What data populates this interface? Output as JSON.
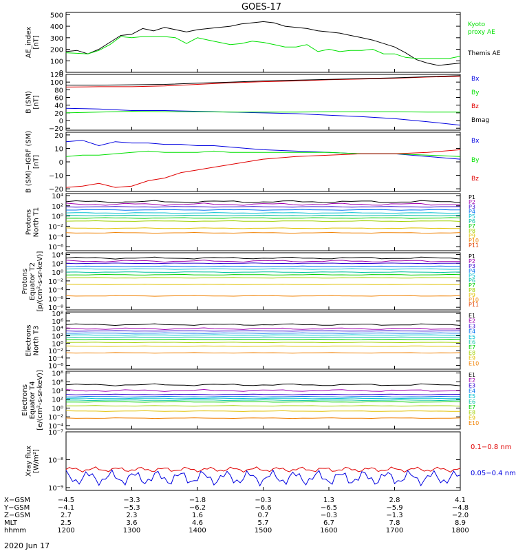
{
  "title": "GOES-17",
  "date": "2020 Jun 17",
  "colors": {
    "black": "#000000",
    "red": "#e00000",
    "green": "#00e000",
    "blue": "#0000e0",
    "P": [
      "#000000",
      "#a000b0",
      "#3000d0",
      "#0070f0",
      "#00c0d0",
      "#00c0a0",
      "#00d000",
      "#a0d000",
      "#e0c000",
      "#f08000",
      "#e04000",
      "#d00000"
    ]
  },
  "chart_data": [
    {
      "type": "line",
      "ylabel": "AE_index\n[nT]",
      "yticks": [
        "500",
        "400",
        "300",
        "200",
        "100",
        "0"
      ],
      "ylim": [
        0,
        520
      ],
      "legend": [
        {
          "label": "Kyoto\nproxy AE",
          "color": "#00e000"
        },
        {
          "label": "Themis AE",
          "color": "#000000"
        }
      ],
      "series": [
        {
          "name": "Themis AE",
          "color": "#000000",
          "x": [
            1200,
            1210,
            1220,
            1230,
            1240,
            1250,
            1300,
            1310,
            1320,
            1330,
            1340,
            1350,
            1400,
            1410,
            1420,
            1430,
            1440,
            1450,
            1500,
            1510,
            1520,
            1530,
            1540,
            1550,
            1600,
            1610,
            1620,
            1630,
            1640,
            1650,
            1700,
            1710,
            1720,
            1730,
            1740,
            1750,
            1800
          ],
          "y": [
            180,
            190,
            160,
            200,
            260,
            320,
            330,
            380,
            360,
            390,
            370,
            350,
            370,
            380,
            390,
            400,
            420,
            430,
            440,
            430,
            400,
            390,
            380,
            360,
            350,
            340,
            320,
            300,
            280,
            250,
            220,
            170,
            110,
            80,
            60,
            70,
            80
          ]
        },
        {
          "name": "Kyoto proxy AE",
          "color": "#00e000",
          "x": [
            1200,
            1210,
            1220,
            1230,
            1240,
            1250,
            1300,
            1310,
            1320,
            1330,
            1340,
            1350,
            1400,
            1410,
            1420,
            1430,
            1440,
            1450,
            1500,
            1510,
            1520,
            1530,
            1540,
            1550,
            1600,
            1610,
            1620,
            1630,
            1640,
            1650,
            1700,
            1710,
            1720,
            1730,
            1740,
            1750,
            1800
          ],
          "y": [
            170,
            165,
            160,
            190,
            240,
            310,
            300,
            310,
            310,
            310,
            300,
            250,
            300,
            280,
            260,
            240,
            250,
            270,
            260,
            240,
            220,
            220,
            240,
            180,
            200,
            180,
            190,
            190,
            200,
            160,
            160,
            130,
            120,
            120,
            120,
            120,
            140
          ]
        }
      ]
    },
    {
      "type": "line",
      "ylabel": "B (SM)\n[nT]",
      "yticks": [
        "120",
        "100",
        "80",
        "60",
        "40",
        "20",
        "0",
        "−20"
      ],
      "ylim": [
        -25,
        120
      ],
      "legend": [
        {
          "label": "Bx",
          "color": "#0000e0"
        },
        {
          "label": "By",
          "color": "#00e000"
        },
        {
          "label": "Bz",
          "color": "#e00000"
        },
        {
          "label": "Bmag",
          "color": "#000000"
        }
      ],
      "series": [
        {
          "name": "Bx",
          "color": "#0000e0",
          "x": [
            1200,
            1230,
            1300,
            1330,
            1400,
            1430,
            1500,
            1530,
            1600,
            1630,
            1700,
            1730,
            1800
          ],
          "y": [
            32,
            30,
            26,
            26,
            24,
            22,
            20,
            18,
            14,
            10,
            5,
            -3,
            -12
          ]
        },
        {
          "name": "By",
          "color": "#00e000",
          "x": [
            1200,
            1230,
            1300,
            1330,
            1400,
            1430,
            1500,
            1530,
            1600,
            1630,
            1700,
            1730,
            1800
          ],
          "y": [
            20,
            22,
            24,
            23,
            23,
            22,
            22,
            22,
            23,
            23,
            23,
            22,
            22
          ]
        },
        {
          "name": "Bz",
          "color": "#e00000",
          "x": [
            1200,
            1230,
            1300,
            1330,
            1400,
            1430,
            1500,
            1530,
            1600,
            1630,
            1700,
            1730,
            1800
          ],
          "y": [
            87,
            88,
            88,
            90,
            94,
            98,
            101,
            103,
            106,
            108,
            110,
            113,
            115
          ]
        },
        {
          "name": "Bmag",
          "color": "#000000",
          "x": [
            1200,
            1230,
            1300,
            1330,
            1400,
            1430,
            1500,
            1530,
            1600,
            1630,
            1700,
            1730,
            1800
          ],
          "y": [
            92,
            92,
            93,
            94,
            97,
            100,
            103,
            105,
            107,
            109,
            111,
            114,
            117
          ]
        }
      ]
    },
    {
      "type": "line",
      "ylabel": "B (SM)−IGRF (SM)\n[nT]",
      "yticks": [
        "20",
        "10",
        "0",
        "−10",
        "−20"
      ],
      "ylim": [
        -22,
        22
      ],
      "legend": [
        {
          "label": "Bx",
          "color": "#0000e0"
        },
        {
          "label": "By",
          "color": "#00e000"
        },
        {
          "label": "Bz",
          "color": "#e00000"
        }
      ],
      "series": [
        {
          "name": "Bx",
          "color": "#0000e0",
          "x": [
            1200,
            1215,
            1230,
            1245,
            1300,
            1315,
            1330,
            1345,
            1400,
            1415,
            1430,
            1445,
            1500,
            1530,
            1600,
            1630,
            1700,
            1730,
            1800
          ],
          "y": [
            15,
            16,
            12,
            15,
            14,
            14,
            13,
            13,
            12,
            12,
            11,
            10,
            9,
            8,
            7,
            6,
            6,
            4,
            2
          ]
        },
        {
          "name": "By",
          "color": "#00e000",
          "x": [
            1200,
            1215,
            1230,
            1245,
            1300,
            1315,
            1330,
            1345,
            1400,
            1415,
            1430,
            1445,
            1500,
            1530,
            1600,
            1630,
            1700,
            1730,
            1800
          ],
          "y": [
            4,
            5,
            5,
            6,
            7,
            8,
            7,
            7,
            7,
            8,
            7,
            7,
            7,
            7,
            7,
            6,
            6,
            5,
            4
          ]
        },
        {
          "name": "Bz",
          "color": "#e00000",
          "x": [
            1200,
            1215,
            1230,
            1245,
            1300,
            1315,
            1330,
            1345,
            1400,
            1415,
            1430,
            1445,
            1500,
            1530,
            1600,
            1630,
            1700,
            1730,
            1800
          ],
          "y": [
            -19,
            -18,
            -16,
            -19,
            -18,
            -14,
            -12,
            -8,
            -6,
            -4,
            -2,
            0,
            2,
            4,
            5,
            6,
            6,
            7,
            9
          ]
        }
      ]
    },
    {
      "type": "line",
      "ylabel": "Protons\nNorth T1",
      "yticks": [
        "10⁴",
        "10²",
        "10⁰",
        "10⁻²",
        "10⁻⁴",
        "10⁻⁶"
      ],
      "log": true,
      "ylim_exp": [
        -6.8,
        4.4
      ],
      "legend": [
        {
          "label": "P1"
        },
        {
          "label": "P2"
        },
        {
          "label": "P3"
        },
        {
          "label": "P4"
        },
        {
          "label": "P5"
        },
        {
          "label": "P6"
        },
        {
          "label": "P7"
        },
        {
          "label": "P8"
        },
        {
          "label": "P9"
        },
        {
          "label": "P10"
        },
        {
          "label": "P11"
        }
      ],
      "levels": [
        2.8,
        2.3,
        1.8,
        1.2,
        0.6,
        0.1,
        -0.4,
        -1.0,
        -2.4,
        -3.3,
        -99
      ]
    },
    {
      "type": "line",
      "ylabel": "Protons\nEquator T2\n[p/(cm²-s-sr-keV)]",
      "yticks": [
        "10⁴",
        "10²",
        "10⁰",
        "10⁻²",
        "10⁻⁴",
        "10⁻⁶",
        "10⁻⁸"
      ],
      "log": true,
      "ylim_exp": [
        -8.6,
        4.4
      ],
      "legend": [
        {
          "label": "P1"
        },
        {
          "label": "P2"
        },
        {
          "label": "P3"
        },
        {
          "label": "P4"
        },
        {
          "label": "P5"
        },
        {
          "label": "P6"
        },
        {
          "label": "P7"
        },
        {
          "label": "P8"
        },
        {
          "label": "P9"
        },
        {
          "label": "P10"
        },
        {
          "label": "P11"
        }
      ],
      "levels": [
        3.2,
        2.5,
        2.0,
        1.3,
        0.7,
        0.0,
        -0.6,
        -1.3,
        -2.8,
        -5.4,
        -99
      ]
    },
    {
      "type": "line",
      "ylabel": "Electrons\nNorth T3",
      "yticks": [
        "10⁸",
        "10⁶",
        "10⁴",
        "10²",
        "10⁰",
        "10⁻²",
        "10⁻⁴",
        "10⁻⁶"
      ],
      "log": true,
      "ylim_exp": [
        -7.0,
        8.4
      ],
      "legend": [
        {
          "label": "E1"
        },
        {
          "label": "E2"
        },
        {
          "label": "E3"
        },
        {
          "label": "E4"
        },
        {
          "label": "E5"
        },
        {
          "label": "E6"
        },
        {
          "label": "E7"
        },
        {
          "label": "E8"
        },
        {
          "label": "E9"
        },
        {
          "label": "E10"
        }
      ],
      "levels": [
        5.0,
        3.9,
        3.3,
        2.7,
        2.2,
        1.6,
        1.0,
        0.2,
        -0.8,
        -2.6
      ]
    },
    {
      "type": "line",
      "ylabel": "Electrons\nEquator T4\n[e/(cm²-s-sr-keV)]",
      "yticks": [
        "10⁸",
        "10⁶",
        "10⁴",
        "10²",
        "10⁰",
        "10⁻²",
        "10⁻⁴"
      ],
      "log": true,
      "ylim_exp": [
        -4.8,
        8.4
      ],
      "legend": [
        {
          "label": "E1"
        },
        {
          "label": "E2"
        },
        {
          "label": "E3"
        },
        {
          "label": "E4"
        },
        {
          "label": "E5"
        },
        {
          "label": "E6"
        },
        {
          "label": "E7"
        },
        {
          "label": "E8"
        },
        {
          "label": "E9"
        },
        {
          "label": "E10"
        }
      ],
      "levels": [
        5.3,
        4.0,
        3.1,
        2.6,
        2.2,
        1.8,
        1.4,
        0.5,
        -0.7,
        -2.3
      ]
    },
    {
      "type": "line",
      "ylabel": "Xray flux\n[W/m²]",
      "yticks": [
        "10⁻⁷",
        "10⁻⁸",
        "10⁻⁹"
      ],
      "log": true,
      "ylim_exp": [
        -9.1,
        -7.0
      ],
      "legend": [
        {
          "label": "0.1−0.8 nm",
          "color": "#e00000"
        },
        {
          "label": "0.05−0.4 nm",
          "color": "#0000e0"
        }
      ],
      "levels": [
        -8.35,
        -8.65
      ]
    }
  ],
  "xaxis": {
    "ticks": [
      1200,
      1300,
      1400,
      1500,
      1600,
      1700,
      1800
    ],
    "rows": [
      {
        "label": "X−GSM",
        "values": [
          "−4.5",
          "−3.3",
          "−1.8",
          "−0.3",
          "1.3",
          "2.8",
          "4.1"
        ]
      },
      {
        "label": "Y−GSM",
        "values": [
          "−4.1",
          "−5.3",
          "−6.2",
          "−6.6",
          "−6.5",
          "−5.9",
          "−4.8"
        ]
      },
      {
        "label": "Z−GSM",
        "values": [
          "2.7",
          "2.3",
          "1.6",
          "0.7",
          "−0.3",
          "−1.3",
          "−2.0"
        ]
      },
      {
        "label": "MLT",
        "values": [
          "2.5",
          "3.6",
          "4.6",
          "5.7",
          "6.7",
          "7.8",
          "8.9"
        ]
      },
      {
        "label": "hhmm",
        "values": [
          "1200",
          "1300",
          "1400",
          "1500",
          "1600",
          "1700",
          "1800"
        ]
      }
    ]
  }
}
